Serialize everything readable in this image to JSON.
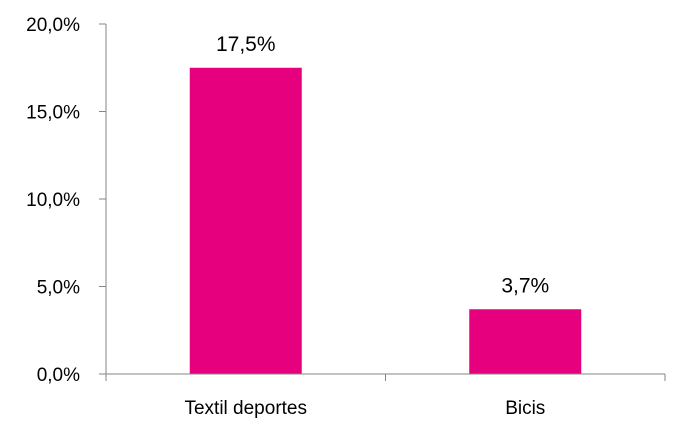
{
  "chart_data": {
    "type": "bar",
    "categories": [
      "Textil deportes",
      "Bicis"
    ],
    "values": [
      17.5,
      3.7
    ],
    "data_labels": [
      "17,5%",
      "3,7%"
    ],
    "title": "",
    "xlabel": "",
    "ylabel": "",
    "ylim": [
      0,
      20
    ],
    "y_ticks": [
      0,
      5,
      10,
      15,
      20
    ],
    "y_tick_labels": [
      "0,0%",
      "5,0%",
      "10,0%",
      "15,0%",
      "20,0%"
    ],
    "grid": false,
    "legend": "none",
    "bar_color": "#E6007E",
    "axis_color": "#868686"
  }
}
